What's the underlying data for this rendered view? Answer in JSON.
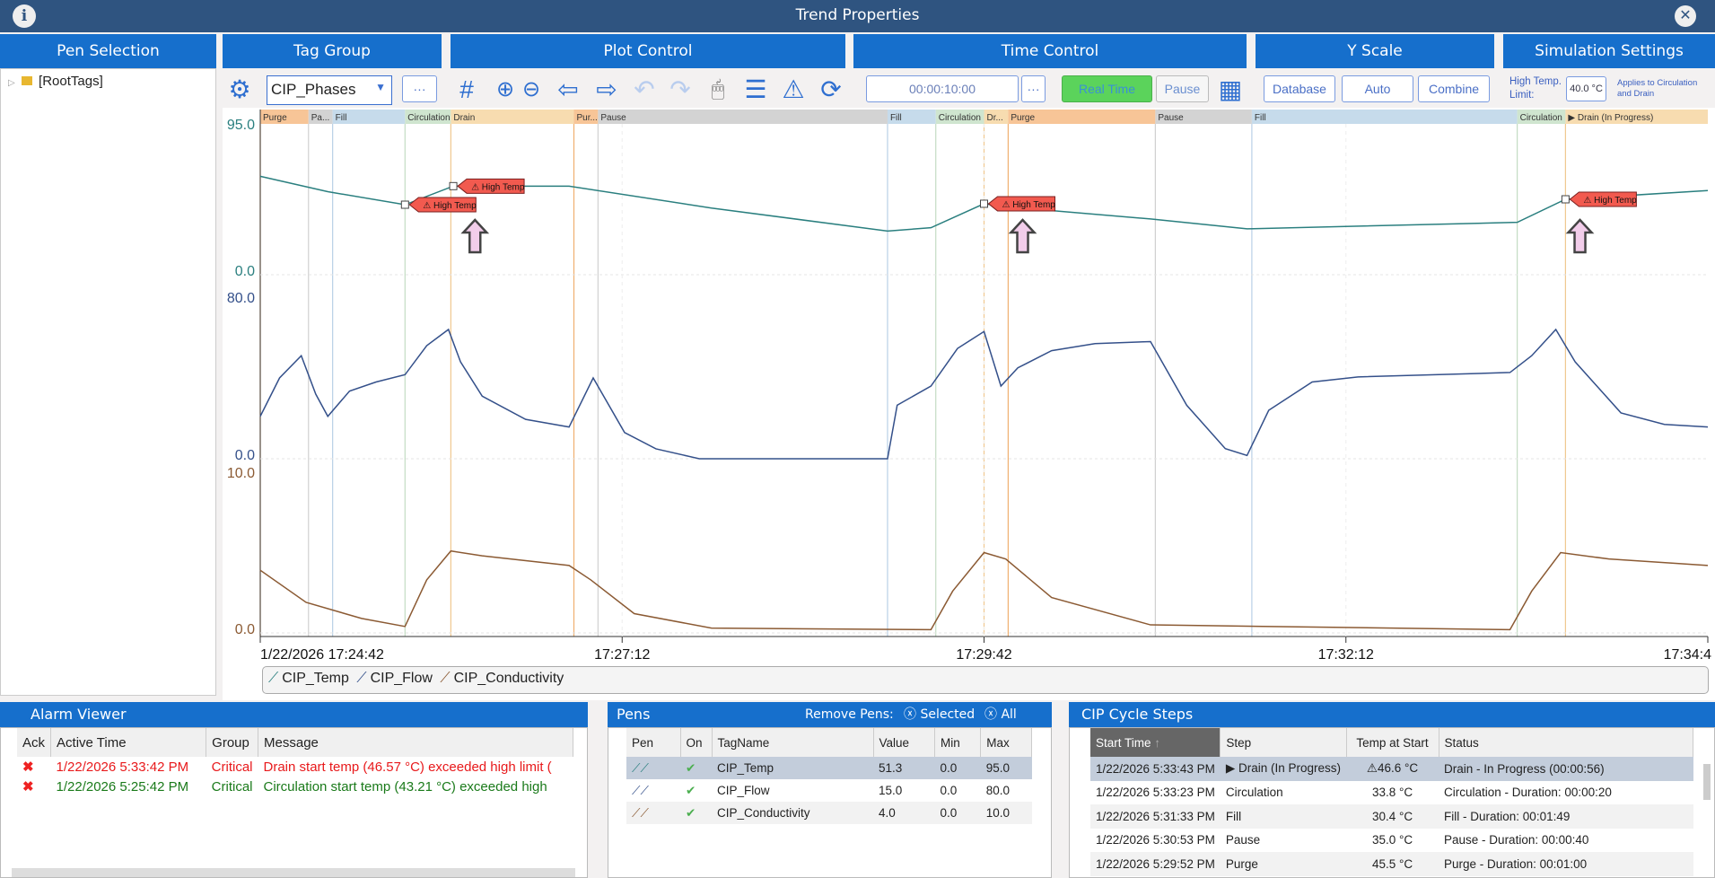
{
  "window": {
    "title": "Trend Properties",
    "info_icon": "info-icon",
    "close_icon": "close-icon"
  },
  "sections": {
    "pen_selection": "Pen Selection",
    "tag_group": "Tag Group",
    "plot_control": "Plot Control",
    "time_control": "Time Control",
    "y_scale": "Y Scale",
    "simulation_settings": "Simulation Settings"
  },
  "tree": {
    "root": "[RootTags]"
  },
  "toolbar": {
    "tag_group_value": "CIP_Phases",
    "more_label": "···",
    "time_span": "00:00:10:00",
    "real_time": "Real Time",
    "pause": "Pause",
    "database": "Database",
    "auto": "Auto",
    "combine": "Combine",
    "high_temp_label": "High Temp. Limit:",
    "high_temp_value": "40.0 °C",
    "applies_to": "Applies to Circulation and Drain"
  },
  "colors": {
    "accent": "#166fcc",
    "title": "#2f5480",
    "temp": "#2a7f7f",
    "flow": "#34508a",
    "cond": "#8b5a33",
    "alarm_red": "#e8191b",
    "alarm_green": "#1a7a1a",
    "marker": "#f25a4f",
    "realtime": "#5bd35b"
  },
  "chart_data": {
    "type": "line",
    "x_tick_labels": [
      "1/22/2026 17:24:42",
      "17:27:12",
      "17:29:42",
      "17:32:12",
      "17:34:4"
    ],
    "x_range_seconds": [
      0,
      600
    ],
    "axes": [
      {
        "series": "CIP_Temp",
        "max_label": "95.0",
        "min_label": "0.0",
        "range": [
          0,
          95
        ]
      },
      {
        "series": "CIP_Flow",
        "max_label": "80.0",
        "min_label": "0.0",
        "range": [
          0,
          80
        ]
      },
      {
        "series": "CIP_Conductivity",
        "max_label": "10.0",
        "min_label": "0.0",
        "range": [
          0,
          10
        ]
      }
    ],
    "phases": [
      {
        "label": "Purge",
        "start": 0,
        "end": 20,
        "kind": "purge"
      },
      {
        "label": "Pa...",
        "start": 20,
        "end": 30,
        "kind": "pause"
      },
      {
        "label": "Fill",
        "start": 30,
        "end": 60,
        "kind": "fill"
      },
      {
        "label": "Circulation",
        "start": 60,
        "end": 79,
        "kind": "circ"
      },
      {
        "label": "Drain",
        "start": 79,
        "end": 130,
        "kind": "drain"
      },
      {
        "label": "Pur...",
        "start": 130,
        "end": 140,
        "kind": "purge"
      },
      {
        "label": "Pause",
        "start": 140,
        "end": 260,
        "kind": "pause"
      },
      {
        "label": "Fill",
        "start": 260,
        "end": 280,
        "kind": "fill"
      },
      {
        "label": "Circulation",
        "start": 280,
        "end": 300,
        "kind": "circ"
      },
      {
        "label": "Dr...",
        "start": 300,
        "end": 310,
        "kind": "drain"
      },
      {
        "label": "Purge",
        "start": 310,
        "end": 371,
        "kind": "purge"
      },
      {
        "label": "Pause",
        "start": 371,
        "end": 411,
        "kind": "pause"
      },
      {
        "label": "Fill",
        "start": 411,
        "end": 521,
        "kind": "fill"
      },
      {
        "label": "Circulation",
        "start": 521,
        "end": 541,
        "kind": "circ"
      },
      {
        "label": "▶ Drain (In Progress)",
        "start": 541,
        "end": 600,
        "kind": "drain"
      }
    ],
    "series": [
      {
        "name": "CIP_Temp",
        "points": [
          [
            0,
            62
          ],
          [
            28,
            52.3
          ],
          [
            60,
            44.1
          ],
          [
            80,
            55.8
          ],
          [
            128,
            55.8
          ],
          [
            187,
            42
          ],
          [
            260,
            27.5
          ],
          [
            278,
            29.6
          ],
          [
            300,
            44.7
          ],
          [
            310,
            42.7
          ],
          [
            369,
            35.1
          ],
          [
            409,
            28.9
          ],
          [
            521,
            33
          ],
          [
            541,
            47.5
          ],
          [
            600,
            53
          ]
        ]
      },
      {
        "name": "CIP_Flow",
        "points": [
          [
            0,
            21
          ],
          [
            8,
            40
          ],
          [
            17,
            51
          ],
          [
            23,
            32
          ],
          [
            28,
            21
          ],
          [
            37,
            33.5
          ],
          [
            48,
            38
          ],
          [
            60,
            41.6
          ],
          [
            69,
            56
          ],
          [
            78,
            64
          ],
          [
            83,
            48
          ],
          [
            92,
            31
          ],
          [
            110,
            19.5
          ],
          [
            128,
            15.7
          ],
          [
            138,
            40
          ],
          [
            151,
            13
          ],
          [
            164,
            4.9
          ],
          [
            182,
            0
          ],
          [
            260,
            0
          ],
          [
            264,
            26.5
          ],
          [
            278,
            36
          ],
          [
            289,
            54.6
          ],
          [
            300,
            63
          ],
          [
            307,
            36
          ],
          [
            314,
            45
          ],
          [
            328,
            53.5
          ],
          [
            346,
            57
          ],
          [
            369,
            58
          ],
          [
            384,
            26.5
          ],
          [
            400,
            5
          ],
          [
            409,
            1.6
          ],
          [
            418,
            24
          ],
          [
            436,
            38
          ],
          [
            455,
            40.5
          ],
          [
            518,
            42.7
          ],
          [
            527,
            51
          ],
          [
            537,
            64
          ],
          [
            545,
            48
          ],
          [
            564,
            22.7
          ],
          [
            582,
            17
          ],
          [
            600,
            15.7
          ]
        ]
      },
      {
        "name": "CIP_Conductivity",
        "points": [
          [
            0,
            3.9
          ],
          [
            19,
            1.9
          ],
          [
            42,
            0.9
          ],
          [
            60,
            0.4
          ],
          [
            69,
            3.3
          ],
          [
            79,
            5.1
          ],
          [
            92,
            4.8
          ],
          [
            128,
            4.2
          ],
          [
            137,
            3.3
          ],
          [
            155,
            1.2
          ],
          [
            187,
            0.3
          ],
          [
            278,
            0.2
          ],
          [
            287,
            2.6
          ],
          [
            300,
            5
          ],
          [
            309,
            4.6
          ],
          [
            328,
            2.2
          ],
          [
            369,
            0.5
          ],
          [
            518,
            0.2
          ],
          [
            527,
            2.6
          ],
          [
            539,
            5
          ],
          [
            559,
            4.6
          ],
          [
            600,
            4.2
          ]
        ]
      }
    ],
    "annotations": [
      {
        "label": "High Temp",
        "t": 60,
        "value": 44.1
      },
      {
        "label": "High Temp",
        "t": 80,
        "value": 55.8
      },
      {
        "label": "High Temp",
        "t": 300,
        "value": 44.7
      },
      {
        "label": "High Temp",
        "t": 541,
        "value": 47.5
      }
    ],
    "arrows_at": [
      89,
      316,
      547
    ],
    "legend": [
      "CIP_Temp",
      "CIP_Flow",
      "CIP_Conductivity"
    ]
  },
  "alarm": {
    "title": "Alarm Viewer",
    "cols": [
      "Ack",
      "Active Time",
      "Group",
      "Message"
    ],
    "rows": [
      {
        "time": "1/22/2026 5:33:42 PM",
        "group": "Critical",
        "message": "Drain start temp (46.57 °C) exceeded high limit (",
        "state": "active"
      },
      {
        "time": "1/22/2026 5:25:42 PM",
        "group": "Critical",
        "message": "Circulation start temp (43.21 °C) exceeded high",
        "state": "cleared"
      }
    ]
  },
  "pens": {
    "title": "Pens",
    "remove_label": "Remove Pens:",
    "selected": "Selected",
    "all": "All",
    "cols": [
      "Pen",
      "On",
      "TagName",
      "Value",
      "Min",
      "Max"
    ],
    "rows": [
      {
        "tag": "CIP_Temp",
        "value": "51.3",
        "min": "0.0",
        "max": "95.0"
      },
      {
        "tag": "CIP_Flow",
        "value": "15.0",
        "min": "0.0",
        "max": "80.0"
      },
      {
        "tag": "CIP_Conductivity",
        "value": "4.0",
        "min": "0.0",
        "max": "10.0"
      }
    ]
  },
  "steps": {
    "title": "CIP Cycle Steps",
    "cols": [
      "Start Time",
      "Step",
      "Temp at Start",
      "Status"
    ],
    "rows": [
      {
        "start": "1/22/2026 5:33:43 PM",
        "step": "▶ Drain (In Progress)",
        "temp": "⚠46.6 °C",
        "status": "Drain - In Progress (00:00:56)"
      },
      {
        "start": "1/22/2026 5:33:23 PM",
        "step": "Circulation",
        "temp": "33.8 °C",
        "status": "Circulation - Duration: 00:00:20"
      },
      {
        "start": "1/22/2026 5:31:33 PM",
        "step": "Fill",
        "temp": "30.4 °C",
        "status": "Fill - Duration: 00:01:49"
      },
      {
        "start": "1/22/2026 5:30:53 PM",
        "step": "Pause",
        "temp": "35.0 °C",
        "status": "Pause - Duration: 00:00:40"
      },
      {
        "start": "1/22/2026 5:29:52 PM",
        "step": "Purge",
        "temp": "45.5 °C",
        "status": "Purge - Duration: 00:01:00"
      }
    ]
  }
}
